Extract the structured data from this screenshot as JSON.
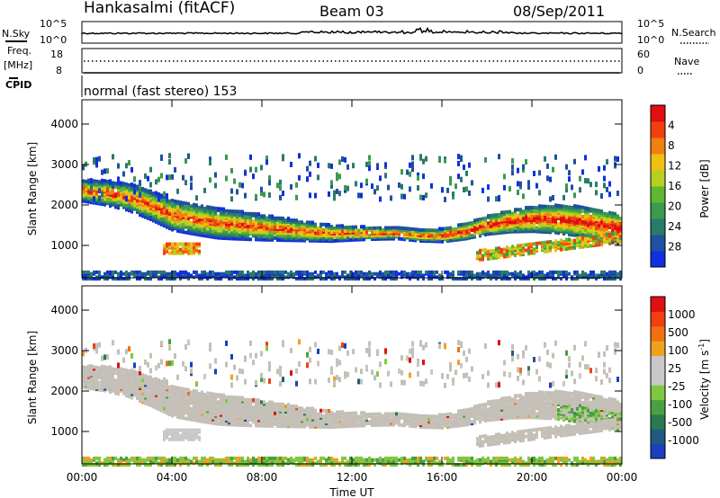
{
  "header": {
    "station": "Hankasalmi (fitACF)",
    "beam": "Beam 03",
    "date": "08/Sep/2011"
  },
  "noise_panel": {
    "left_label": "N.Sky",
    "right_label": "N.Search",
    "left_ticks": [
      "10^5",
      "10^0"
    ],
    "right_ticks": [
      "10^5",
      "10^0"
    ]
  },
  "freq_panel": {
    "left_label_1": "Freq.",
    "left_label_2": "[MHz]",
    "left_ticks": [
      "18",
      "8"
    ],
    "right_ticks": [
      "60",
      "0"
    ],
    "right_label": "Nave",
    "cpid_label": "CPID"
  },
  "cpid_text": "normal (fast stereo) 153",
  "chart_data": [
    {
      "type": "heatmap",
      "name": "power",
      "ylabel": "Slant Range [km]",
      "ylim": [
        200,
        4600
      ],
      "yticks": [
        "1000",
        "2000",
        "3000",
        "4000"
      ],
      "xlim": [
        "00:00",
        "24:00"
      ],
      "colorbar": {
        "label": "Power [dB]",
        "ticks": [
          "4",
          "8",
          "12",
          "16",
          "20",
          "24",
          "28"
        ],
        "colors": [
          "#1030e0",
          "#2050a0",
          "#2a7a6a",
          "#3a9a50",
          "#60b830",
          "#b8d020",
          "#f0c010",
          "#f08010",
          "#f04010",
          "#e01010"
        ]
      },
      "band_main_km": [
        {
          "t": 0.0,
          "km": 2400
        },
        {
          "t": 1.0,
          "km": 2350
        },
        {
          "t": 2.0,
          "km": 2250
        },
        {
          "t": 3.0,
          "km": 2050
        },
        {
          "t": 4.0,
          "km": 1800
        },
        {
          "t": 5.0,
          "km": 1700
        },
        {
          "t": 6.0,
          "km": 1600
        },
        {
          "t": 7.0,
          "km": 1550
        },
        {
          "t": 8.0,
          "km": 1500
        },
        {
          "t": 9.0,
          "km": 1450
        },
        {
          "t": 10.0,
          "km": 1400
        },
        {
          "t": 11.0,
          "km": 1350
        },
        {
          "t": 12.0,
          "km": 1350
        },
        {
          "t": 13.0,
          "km": 1350
        },
        {
          "t": 14.0,
          "km": 1350
        },
        {
          "t": 15.0,
          "km": 1300
        },
        {
          "t": 16.0,
          "km": 1300
        },
        {
          "t": 17.0,
          "km": 1400
        },
        {
          "t": 18.0,
          "km": 1550
        },
        {
          "t": 19.0,
          "km": 1650
        },
        {
          "t": 20.0,
          "km": 1700
        },
        {
          "t": 21.0,
          "km": 1700
        },
        {
          "t": 22.0,
          "km": 1650
        },
        {
          "t": 23.0,
          "km": 1550
        },
        {
          "t": 24.0,
          "km": 1450
        }
      ]
    },
    {
      "type": "heatmap",
      "name": "velocity",
      "ylabel": "Slant Range [km]",
      "ylim": [
        200,
        4600
      ],
      "yticks": [
        "1000",
        "2000",
        "3000",
        "4000"
      ],
      "xlabel": "Time UT",
      "xticks": [
        "00:00",
        "04:00",
        "08:00",
        "12:00",
        "16:00",
        "20:00",
        "00:00"
      ],
      "colorbar": {
        "label": "Velocity [m s",
        "label_sup": "-1",
        "label_end": "]",
        "ticks": [
          "1000",
          "500",
          "100",
          "25",
          "-25",
          "-100",
          "-500",
          "-1000"
        ],
        "colors": [
          "#1a40c0",
          "#205a80",
          "#2a7a50",
          "#4aa040",
          "#80c840",
          "#c8c8c8",
          "#c8c8c8",
          "#f0a020",
          "#f07010",
          "#f04010",
          "#e01010"
        ]
      },
      "dominant_color": "#c4c0b8"
    }
  ]
}
